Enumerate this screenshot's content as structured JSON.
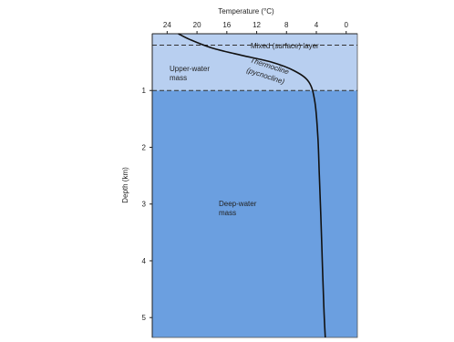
{
  "chart_data": {
    "type": "line",
    "title": "",
    "xlabel": "Temperature (°C)",
    "ylabel": "Depth (km)",
    "x_ticks": [
      24,
      20,
      16,
      12,
      8,
      4,
      0
    ],
    "y_ticks": [
      1,
      2,
      3,
      4,
      5
    ],
    "xlim": [
      26,
      -1.5
    ],
    "ylim": [
      0,
      5.35
    ],
    "x_axis_position": "top",
    "x_axis_reversed": true,
    "grid": false,
    "series": [
      {
        "name": "",
        "x": [
          22.5,
          21,
          18,
          14,
          10,
          7,
          5,
          4.2,
          3.8,
          3.6,
          3.4,
          3.2,
          3.0,
          2.8
        ],
        "y": [
          0.0,
          0.1,
          0.25,
          0.38,
          0.5,
          0.65,
          0.85,
          1.2,
          1.8,
          2.5,
          3.2,
          4.0,
          4.8,
          5.35
        ]
      }
    ],
    "zones": [
      {
        "label": "Mixed (surface) layer",
        "top": 0.0,
        "bottom": 0.2,
        "color": "#b8cff0"
      },
      {
        "label": "Upper-water mass",
        "top": 0.2,
        "bottom": 1.0,
        "color": "#b8cff0"
      },
      {
        "label": "Deep-water mass",
        "top": 1.0,
        "bottom": 5.35,
        "color": "#6b9fe0"
      }
    ],
    "boundaries": [
      0.2,
      1.0
    ],
    "annotations": [
      {
        "line1": "Thermocline",
        "line2": "(pycnocline)"
      }
    ]
  }
}
